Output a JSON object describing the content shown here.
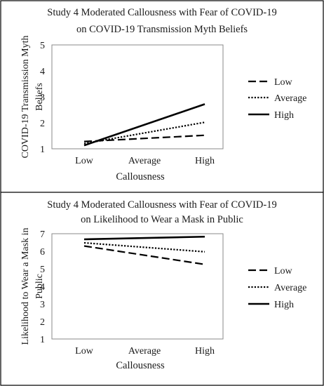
{
  "chart_data": [
    {
      "type": "line",
      "title_lines": [
        "Study 4 Moderated Callousness with Fear of COVID-19",
        "on COVID-19 Transmission Myth Beliefs"
      ],
      "xlabel": "Callousness",
      "ylabel_lines": [
        "COVID-19 Transmission Myth",
        "Beliefs"
      ],
      "categories": [
        "Low",
        "Average",
        "High"
      ],
      "ylim": [
        1,
        5
      ],
      "yticks": [
        1,
        2,
        3,
        4,
        5
      ],
      "legend_position": "right",
      "series": [
        {
          "name": "Low",
          "x": [
            "Low",
            "High"
          ],
          "values": [
            1.28,
            1.52
          ],
          "style": "dashed"
        },
        {
          "name": "Average",
          "x": [
            "Low",
            "High"
          ],
          "values": [
            1.2,
            2.02
          ],
          "style": "dotted"
        },
        {
          "name": "High",
          "x": [
            "Low",
            "High"
          ],
          "values": [
            1.13,
            2.72
          ],
          "style": "solid"
        }
      ]
    },
    {
      "type": "line",
      "title_lines": [
        "Study 4 Moderated Callousness with Fear of COVID-19",
        "on Likelihood to Wear a Mask in Public"
      ],
      "xlabel": "Callousness",
      "ylabel_lines": [
        "Likelihood to Wear a Mask in",
        "Public"
      ],
      "categories": [
        "Low",
        "Average",
        "High"
      ],
      "ylim": [
        1,
        7
      ],
      "yticks": [
        1,
        2,
        3,
        4,
        5,
        6,
        7
      ],
      "legend_position": "right",
      "series": [
        {
          "name": "Low",
          "x": [
            "Low",
            "High"
          ],
          "values": [
            6.3,
            5.25
          ],
          "style": "dashed"
        },
        {
          "name": "Average",
          "x": [
            "Low",
            "High"
          ],
          "values": [
            6.48,
            5.97
          ],
          "style": "dotted"
        },
        {
          "name": "High",
          "x": [
            "Low",
            "High"
          ],
          "values": [
            6.68,
            6.83
          ],
          "style": "solid"
        }
      ]
    }
  ]
}
